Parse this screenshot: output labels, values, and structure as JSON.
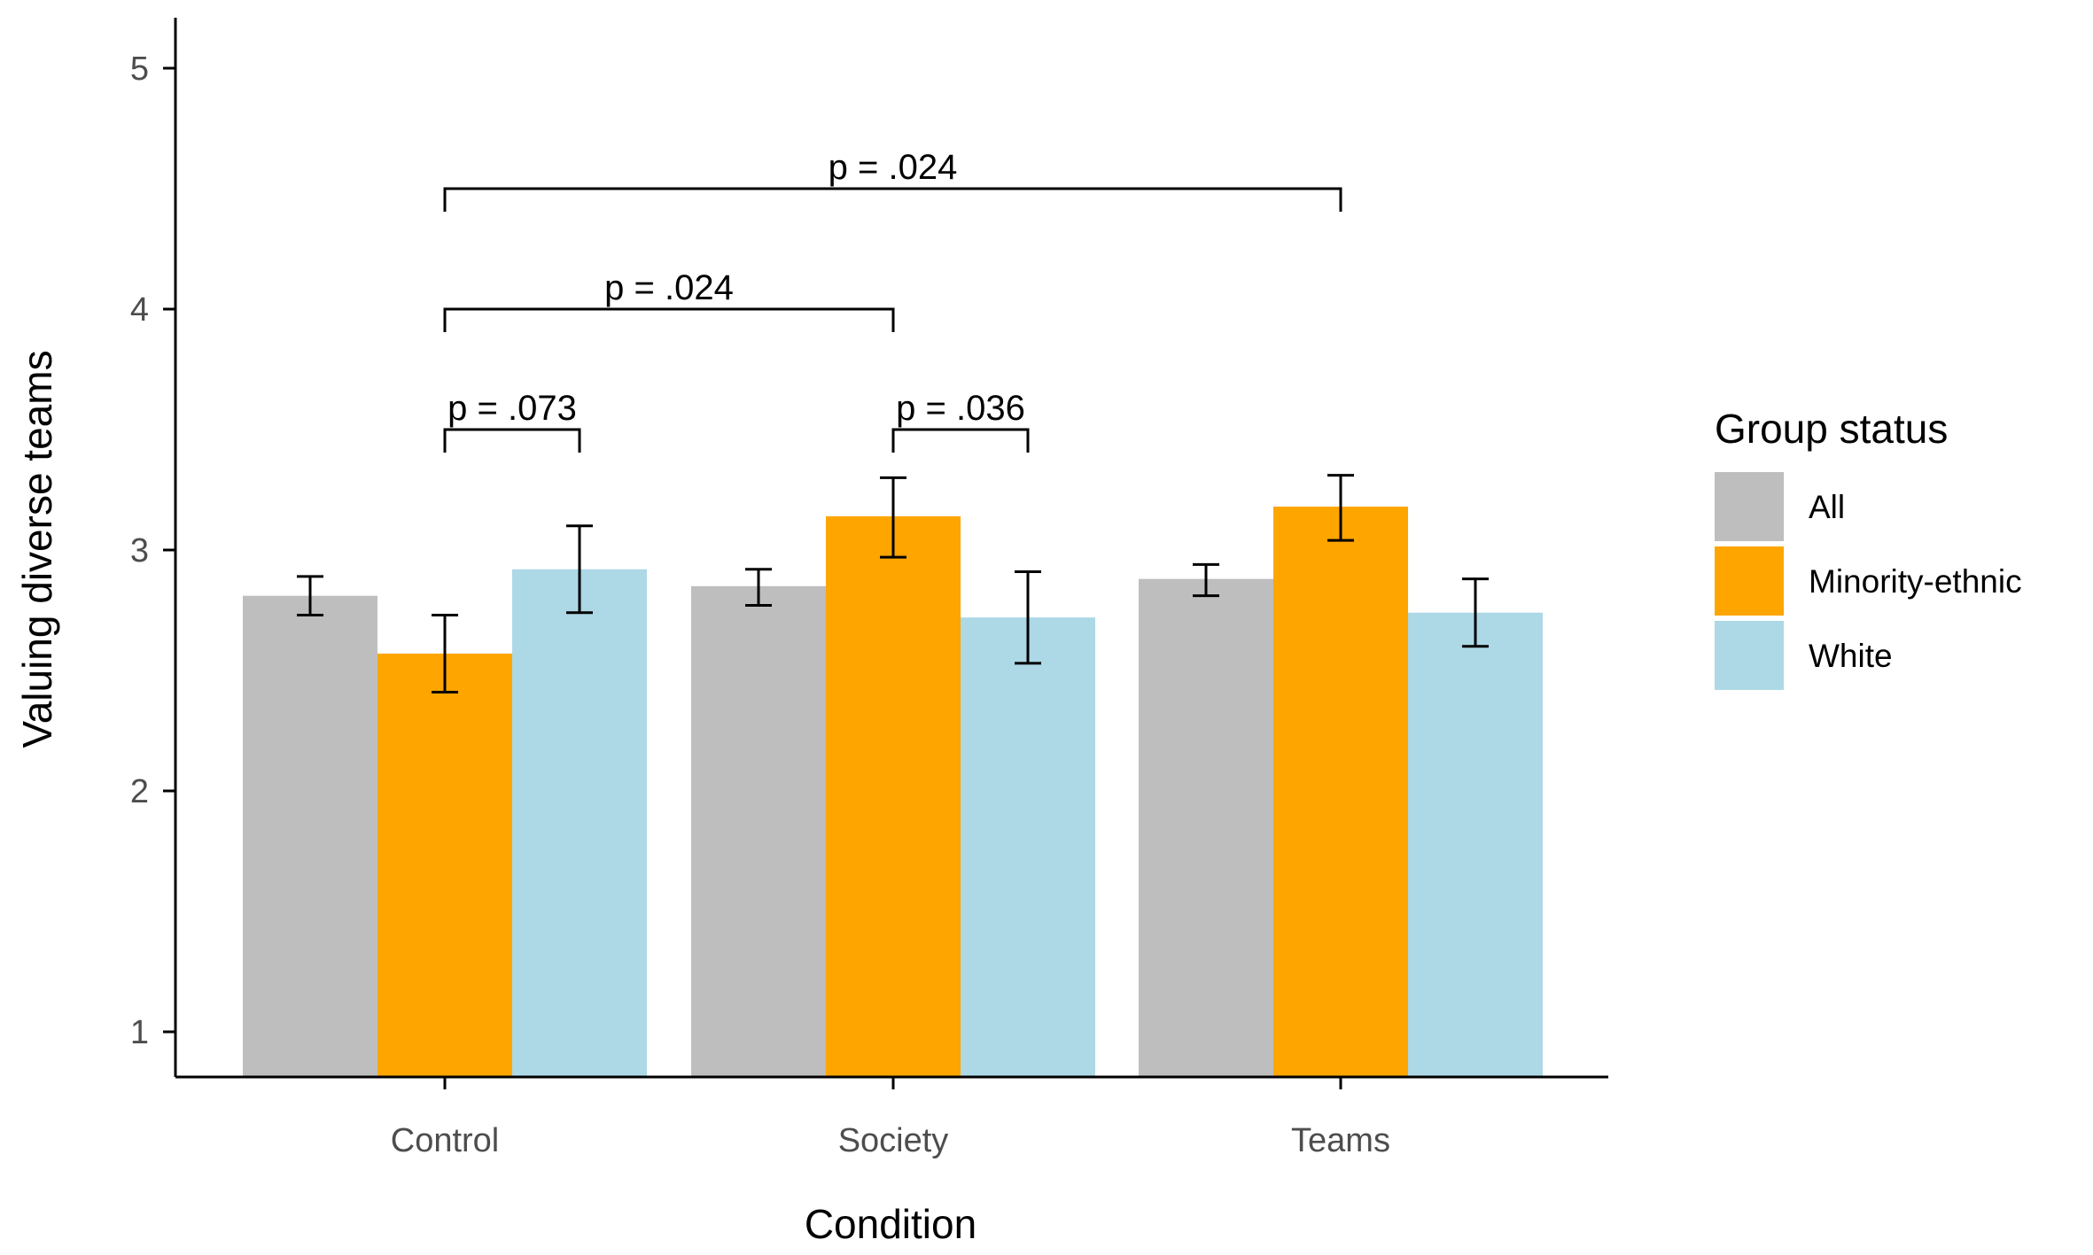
{
  "chart_data": {
    "type": "bar",
    "xlabel": "Condition",
    "ylabel": "Valuing diverse teams",
    "ylim": [
      0.8,
      5.2
    ],
    "yticks": [
      1,
      2,
      3,
      4,
      5
    ],
    "grid": false,
    "categories": [
      "Control",
      "Society",
      "Teams"
    ],
    "legend": {
      "title": "Group status",
      "position": "right"
    },
    "series": [
      {
        "name": "All",
        "color": "#bebebe",
        "values": [
          2.81,
          2.85,
          2.88
        ],
        "err_low": [
          2.73,
          2.77,
          2.81
        ],
        "err_high": [
          2.89,
          2.92,
          2.94
        ]
      },
      {
        "name": "Minority-ethnic",
        "color": "#ffa500",
        "values": [
          2.57,
          3.14,
          3.18
        ],
        "err_low": [
          2.41,
          2.97,
          3.04
        ],
        "err_high": [
          2.73,
          3.3,
          3.31
        ]
      },
      {
        "name": "White",
        "color": "#add8e6",
        "values": [
          2.92,
          2.72,
          2.74
        ],
        "err_low": [
          2.74,
          2.53,
          2.6
        ],
        "err_high": [
          3.1,
          2.91,
          2.88
        ]
      }
    ],
    "annotations": [
      {
        "text": "p = .073",
        "from": {
          "category": 0,
          "series": 1
        },
        "to": {
          "category": 0,
          "series": 2
        },
        "y": 3.5
      },
      {
        "text": "p = .036",
        "from": {
          "category": 1,
          "series": 1
        },
        "to": {
          "category": 1,
          "series": 2
        },
        "y": 3.5
      },
      {
        "text": "p = .024",
        "from": {
          "category": 0,
          "series": 1
        },
        "to": {
          "category": 1,
          "series": 1
        },
        "y": 4.0
      },
      {
        "text": "p = .024",
        "from": {
          "category": 0,
          "series": 1
        },
        "to": {
          "category": 2,
          "series": 1
        },
        "y": 4.5
      }
    ]
  }
}
